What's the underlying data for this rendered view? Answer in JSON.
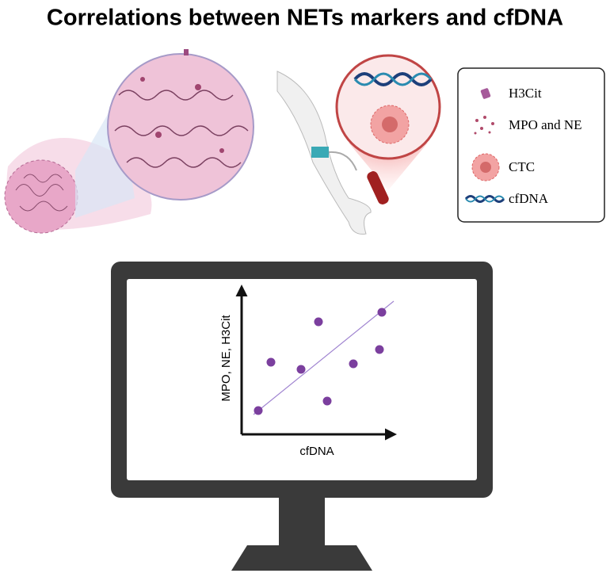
{
  "title": "Correlations between NETs markers and cfDNA",
  "legend": {
    "items": [
      {
        "label": "H3Cit"
      },
      {
        "label": "MPO and NE"
      },
      {
        "label": "CTC"
      },
      {
        "label": "cfDNA"
      }
    ]
  },
  "plot": {
    "x_label": "cfDNA",
    "y_label": "MPO, NE, H3Cit"
  }
}
